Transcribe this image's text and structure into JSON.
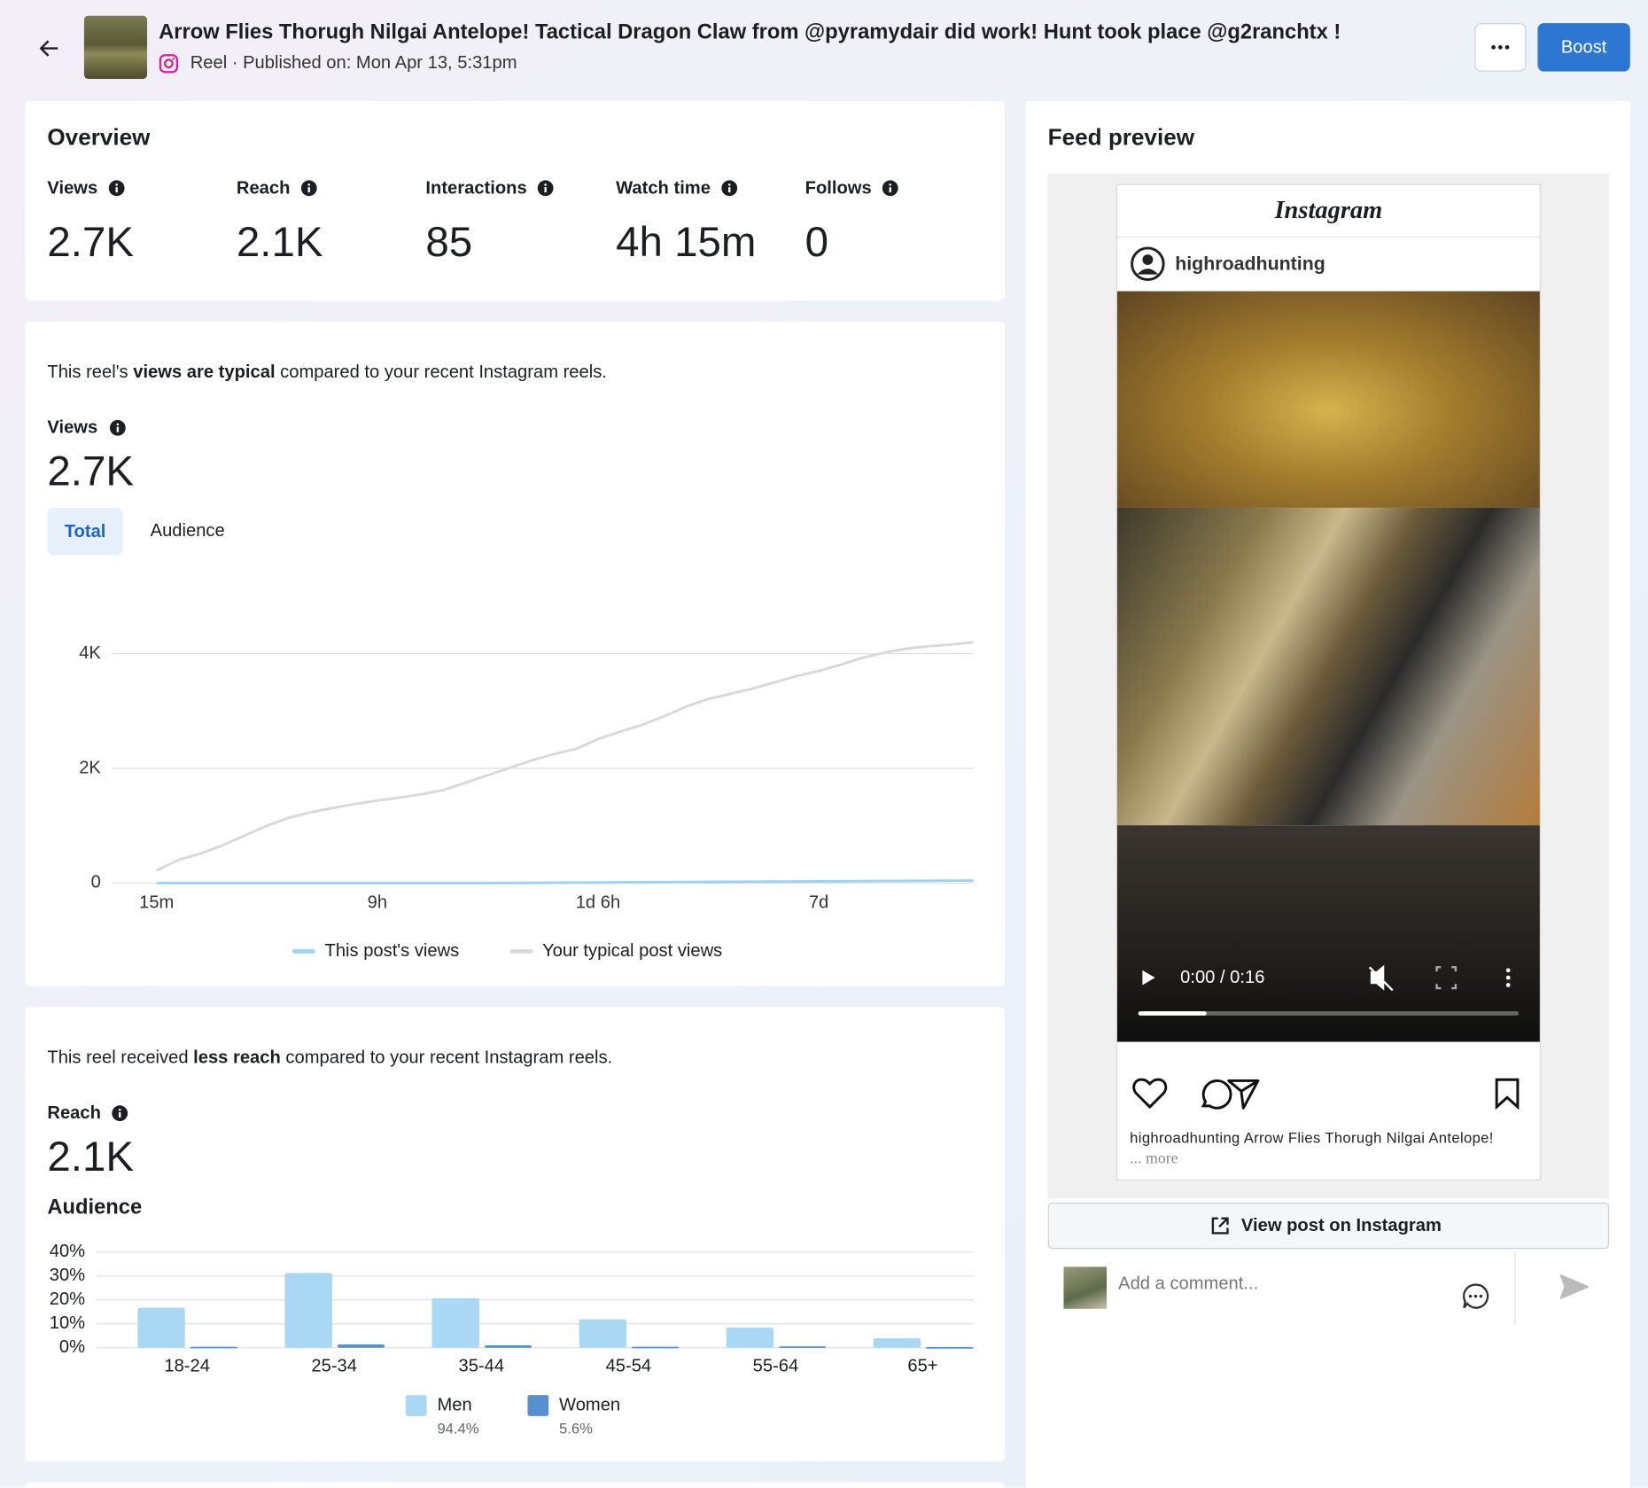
{
  "header": {
    "title": "Arrow Flies Thorugh Nilgai Antelope! Tactical Dragon Claw from @pyramydair did work! Hunt took place @g2ranchtx !",
    "subtitle": "Reel · Published on: Mon Apr 13, 5:31pm",
    "boost_button": "Boost"
  },
  "overview": {
    "title": "Overview",
    "metrics": [
      {
        "label": "Views",
        "value": "2.7K"
      },
      {
        "label": "Reach",
        "value": "2.1K"
      },
      {
        "label": "Interactions",
        "value": "85"
      },
      {
        "label": "Watch time",
        "value": "4h 15m"
      },
      {
        "label": "Follows",
        "value": "0"
      }
    ]
  },
  "views_section": {
    "note": [
      "This reel's ",
      "views are typical",
      " compared to your recent Instagram reels."
    ],
    "metric_label": "Views",
    "metric_value": "2.7K",
    "tabs": [
      "Total",
      "Audience"
    ]
  },
  "reach_section": {
    "note": [
      "This reel received ",
      "less reach",
      " compared to your recent Instagram reels."
    ],
    "metric_label": "Reach",
    "metric_value": "2.1K",
    "chart_title": "Audience"
  },
  "chart_data": [
    {
      "type": "line",
      "x": [
        0,
        1,
        2,
        3,
        4,
        5,
        6,
        7,
        8,
        9,
        10,
        11,
        12,
        13,
        14,
        15,
        16,
        17,
        18,
        19,
        20,
        21,
        22,
        23,
        24,
        25,
        26,
        27,
        28,
        29,
        30,
        31,
        32,
        33,
        34,
        35,
        36,
        37
      ],
      "xlim": [
        -2,
        37
      ],
      "xticks": [
        {
          "value": 0,
          "label": "15m"
        },
        {
          "value": 10,
          "label": "9h"
        },
        {
          "value": 20,
          "label": "1d 6h"
        },
        {
          "value": 30,
          "label": "7d"
        }
      ],
      "ylim": [
        0,
        4400
      ],
      "yticks": [
        0,
        {
          "value": 2000,
          "label": "2K"
        },
        {
          "value": 4000,
          "label": "4K"
        }
      ],
      "grid": true,
      "series": [
        {
          "name": "This post's views",
          "color": "#9dd2f2",
          "values": [
            0,
            0,
            0,
            0,
            0,
            0,
            0,
            0,
            0,
            0,
            0,
            0,
            0,
            0,
            0,
            0,
            2,
            4,
            6,
            8,
            10,
            12,
            14,
            16,
            18,
            20,
            22,
            24,
            26,
            28,
            30,
            32,
            34,
            36,
            38,
            40,
            42,
            44
          ]
        },
        {
          "name": "Your typical post views",
          "color": "#d9d9d9",
          "values": [
            220,
            405,
            515,
            660,
            830,
            1000,
            1140,
            1235,
            1310,
            1380,
            1440,
            1490,
            1550,
            1620,
            1750,
            1880,
            2010,
            2140,
            2250,
            2340,
            2510,
            2640,
            2760,
            2910,
            3080,
            3210,
            3300,
            3390,
            3500,
            3610,
            3700,
            3810,
            3930,
            4020,
            4090,
            4130,
            4160,
            4200
          ]
        }
      ]
    },
    {
      "type": "bar",
      "categories": [
        "18-24",
        "25-34",
        "35-44",
        "45-54",
        "55-64",
        "65+"
      ],
      "ylim": [
        0,
        40
      ],
      "yticks": [
        {
          "value": 0,
          "label": "0%"
        },
        {
          "value": 10,
          "label": "10%"
        },
        {
          "value": 20,
          "label": "20%"
        },
        {
          "value": 30,
          "label": "30%"
        },
        {
          "value": 40,
          "label": "40%"
        }
      ],
      "grid": true,
      "series": [
        {
          "name": "Men",
          "color": "#a9d7f4",
          "share": "94.4%",
          "values": [
            16.7,
            31.2,
            20.7,
            11.9,
            8.4,
            4.0
          ]
        },
        {
          "name": "Women",
          "color": "#5790cf",
          "share": "5.6%",
          "values": [
            0.4,
            1.4,
            1.0,
            0.4,
            0.6,
            0.3
          ]
        }
      ]
    }
  ],
  "feed_preview": {
    "title": "Feed preview",
    "logo": "Instagram",
    "username": "highroadhunting",
    "video_time": "0:00 / 0:16",
    "caption": "highroadhunting Arrow Flies Thorugh Nilgai Antelope!",
    "more": "... more",
    "view_button": "View post on Instagram",
    "comment_placeholder": "Add a comment..."
  }
}
